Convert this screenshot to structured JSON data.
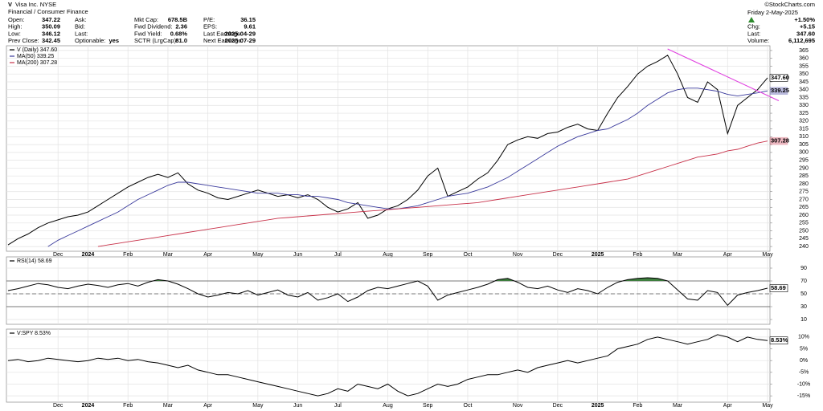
{
  "header": {
    "symbol": "V",
    "name": "Visa Inc. NYSE",
    "sector": "Financial / Consumer Finance",
    "copyright": "©StockCharts.com",
    "columns": [
      [
        [
          "Open:",
          "347.22"
        ],
        [
          "High:",
          "350.09"
        ],
        [
          "Low:",
          "346.12"
        ],
        [
          "Prev Close:",
          "342.45"
        ]
      ],
      [
        [
          "Ask:",
          ""
        ],
        [
          "Bid:",
          ""
        ],
        [
          "Last:",
          ""
        ],
        [
          "Optionable:",
          "yes"
        ]
      ],
      [
        [
          "Mkt Cap:",
          "678.5B"
        ],
        [
          "Fwd Dividend:",
          "2.36"
        ],
        [
          "Fwd Yield:",
          "0.68%"
        ],
        [
          "SCTR (LrgCap):",
          "81.0"
        ]
      ],
      [
        [
          "P/E:",
          "36.15"
        ],
        [
          "EPS:",
          "9.61"
        ],
        [
          "Last Earnings:",
          "2025-04-29"
        ],
        [
          "Next Earnings:",
          "2025-07-29"
        ]
      ]
    ],
    "date": "Friday 2-May-2025",
    "change_pct": "+1.50%",
    "right": [
      [
        "Chg:",
        "+5.15"
      ],
      [
        "Last:",
        "347.60"
      ],
      [
        "Volume:",
        "6,112,695"
      ]
    ]
  },
  "chart_data": [
    {
      "type": "line",
      "categories": [
        null,
        null,
        null,
        null,
        null,
        "Dec",
        null,
        null,
        "2024",
        null,
        null,
        null,
        "Feb",
        null,
        null,
        null,
        "Mar",
        null,
        null,
        null,
        "Apr",
        null,
        null,
        null,
        null,
        "May",
        null,
        null,
        null,
        "Jun",
        null,
        null,
        null,
        "Jul",
        null,
        null,
        null,
        null,
        "Aug",
        null,
        null,
        null,
        "Sep",
        null,
        null,
        null,
        "Oct",
        null,
        null,
        null,
        null,
        "Nov",
        null,
        null,
        null,
        "Dec",
        null,
        null,
        null,
        "2025",
        null,
        null,
        null,
        "Feb",
        null,
        null,
        null,
        "Mar",
        null,
        null,
        null,
        null,
        "Apr",
        null,
        null,
        null,
        "May"
      ],
      "series": [
        {
          "name": "V (Daily) 347.60",
          "color": "#000000",
          "last_label": "347.60",
          "values": [
            241,
            245,
            248,
            252,
            255,
            257,
            259,
            260,
            262,
            266,
            270,
            274,
            278,
            281,
            284,
            286,
            284,
            287,
            280,
            276,
            274,
            271,
            270,
            272,
            274,
            276,
            274,
            272,
            273,
            271,
            273,
            270,
            265,
            262,
            264,
            268,
            258,
            260,
            264,
            266,
            270,
            276,
            285,
            290,
            272,
            275,
            278,
            283,
            287,
            295,
            305,
            308,
            310,
            309,
            312,
            313,
            316,
            318,
            315,
            314,
            325,
            335,
            342,
            350,
            355,
            358,
            362,
            350,
            335,
            332,
            345,
            340,
            312,
            330,
            335,
            340,
            347.6
          ]
        },
        {
          "name": "MA(50) 339.25",
          "color": "#3a3a9c",
          "last_label": "339.25",
          "values": [
            null,
            null,
            null,
            null,
            240,
            244,
            247,
            250,
            253,
            256,
            259,
            262,
            266,
            270,
            273,
            276,
            279,
            281,
            281,
            280,
            279,
            278,
            277,
            276,
            275,
            274,
            274,
            274,
            273,
            273,
            272,
            272,
            271,
            270,
            268,
            267,
            266,
            265,
            264,
            264,
            265,
            266,
            268,
            270,
            272,
            273,
            274,
            276,
            278,
            281,
            284,
            288,
            292,
            296,
            300,
            304,
            307,
            310,
            312,
            314,
            315,
            318,
            321,
            325,
            330,
            334,
            338,
            340,
            341,
            341,
            340,
            339,
            337,
            336,
            337,
            338,
            339.25
          ]
        },
        {
          "name": "MA(200) 307.28",
          "color": "#c8324a",
          "last_label": "307.28",
          "values": [
            null,
            null,
            null,
            null,
            null,
            null,
            null,
            null,
            null,
            240,
            241,
            242,
            243,
            244,
            245,
            246,
            247,
            248,
            249,
            250,
            251,
            252,
            253,
            254,
            255,
            256,
            257,
            258,
            258.5,
            259,
            259.5,
            260,
            260.5,
            261,
            261.5,
            262,
            262.5,
            263,
            263.5,
            264,
            264.5,
            265,
            265.5,
            266,
            266.5,
            267,
            267.5,
            268,
            269,
            270,
            271,
            272,
            273,
            274,
            275,
            276,
            277,
            278,
            279,
            280,
            281,
            282,
            283,
            285,
            287,
            289,
            291,
            293,
            295,
            297,
            298,
            299,
            301,
            302,
            304,
            306,
            307.28
          ]
        }
      ],
      "ylim": [
        238,
        367
      ],
      "yticks": [
        240,
        245,
        250,
        255,
        260,
        265,
        270,
        275,
        280,
        285,
        290,
        295,
        300,
        305,
        310,
        315,
        320,
        325,
        330,
        335,
        340,
        345,
        350,
        355,
        360,
        365
      ],
      "grid": true,
      "trendline": {
        "color": "#e040e0",
        "from": [
          66,
          366
        ],
        "to": [
          76,
          335
        ]
      }
    },
    {
      "type": "line",
      "series": [
        {
          "name": "RSI(14) 58.69",
          "color": "#000000",
          "last_label": "58.69",
          "values": [
            55,
            58,
            62,
            66,
            64,
            60,
            58,
            62,
            65,
            63,
            60,
            64,
            66,
            62,
            68,
            72,
            70,
            65,
            58,
            50,
            45,
            48,
            52,
            50,
            55,
            48,
            52,
            56,
            48,
            45,
            52,
            40,
            44,
            50,
            38,
            45,
            55,
            60,
            58,
            62,
            66,
            70,
            62,
            40,
            48,
            52,
            56,
            60,
            65,
            72,
            74,
            68,
            60,
            58,
            62,
            56,
            52,
            58,
            55,
            50,
            60,
            68,
            72,
            74,
            75,
            74,
            70,
            56,
            42,
            40,
            55,
            52,
            32,
            48,
            52,
            55,
            58.69
          ]
        }
      ],
      "ylim": [
        5,
        105
      ],
      "yticks": [
        90,
        70,
        50,
        30,
        10
      ],
      "reference_lines": [
        70,
        50,
        30
      ],
      "fill_above": 70,
      "fill_color": "#3f7f3f",
      "grid": true
    },
    {
      "type": "line",
      "categories": [
        null,
        null,
        null,
        null,
        null,
        "Dec",
        null,
        null,
        "2024",
        null,
        null,
        null,
        "Feb",
        null,
        null,
        null,
        "Mar",
        null,
        null,
        null,
        "Apr",
        null,
        null,
        null,
        null,
        "May",
        null,
        null,
        null,
        "Jun",
        null,
        null,
        null,
        "Jul",
        null,
        null,
        null,
        null,
        "Aug",
        null,
        null,
        null,
        "Sep",
        null,
        null,
        null,
        "Oct",
        null,
        null,
        null,
        null,
        "Nov",
        null,
        null,
        null,
        "Dec",
        null,
        null,
        null,
        "2025",
        null,
        null,
        null,
        "Feb",
        null,
        null,
        null,
        "Mar",
        null,
        null,
        null,
        null,
        "Apr",
        null,
        null,
        null,
        "May"
      ],
      "series": [
        {
          "name": "V:SPY 8.53%",
          "color": "#000000",
          "last_label": "8.53%",
          "values": [
            0,
            0.5,
            -0.5,
            0,
            1,
            0.5,
            0,
            -0.5,
            0,
            1,
            0.5,
            1,
            0,
            0.5,
            -0.5,
            -1,
            -2,
            -3,
            -2,
            -4,
            -5,
            -6,
            -6,
            -7,
            -8,
            -9,
            -10,
            -11,
            -12,
            -13,
            -14,
            -15,
            -14,
            -12,
            -13,
            -10,
            -11,
            -12,
            -10,
            -13,
            -15,
            -14,
            -12,
            -10,
            -11,
            -10,
            -8,
            -7,
            -6,
            -6,
            -5,
            -4,
            -5,
            -3,
            -2,
            -1,
            0,
            -1,
            0,
            1,
            2,
            5,
            6,
            7,
            9,
            10,
            9,
            8,
            7,
            8,
            9,
            11,
            10,
            8,
            10,
            9,
            8.53
          ]
        }
      ],
      "ylim": [
        -17,
        12
      ],
      "yticks": [
        {
          "value": 10,
          "label": "10%"
        },
        {
          "value": 5,
          "label": "5%"
        },
        {
          "value": 0,
          "label": "0%"
        },
        {
          "value": -5,
          "label": "-5%"
        },
        {
          "value": -10,
          "label": "-10%"
        },
        {
          "value": -15,
          "label": "-15%"
        }
      ],
      "grid": true
    }
  ]
}
